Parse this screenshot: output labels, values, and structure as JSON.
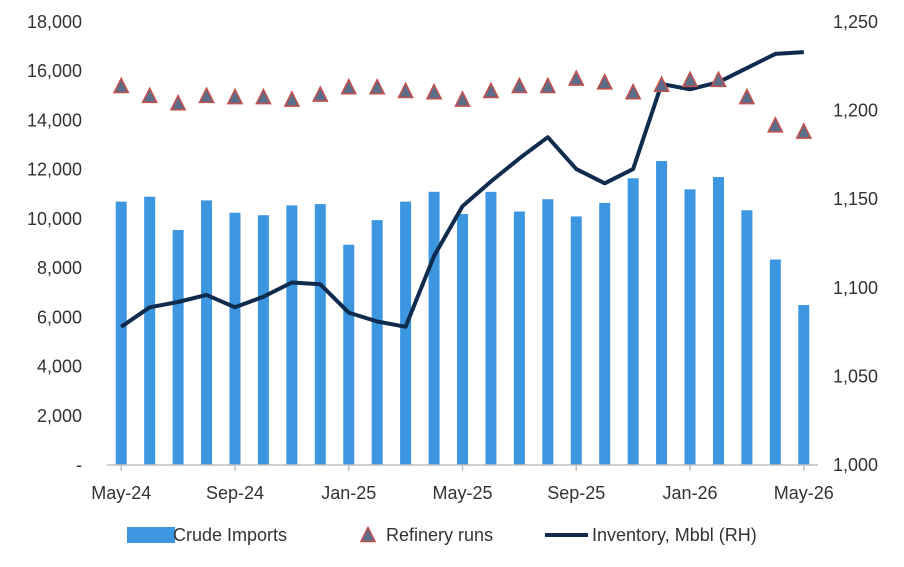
{
  "chart_data": {
    "type": "bar",
    "categories": [
      "May-24",
      "Jun-24",
      "Jul-24",
      "Aug-24",
      "Sep-24",
      "Oct-24",
      "Nov-24",
      "Dec-24",
      "Jan-25",
      "Feb-25",
      "Mar-25",
      "Apr-25",
      "May-25",
      "Jun-25",
      "Jul-25",
      "Aug-25",
      "Sep-25",
      "Oct-25",
      "Nov-25",
      "Dec-25",
      "Jan-26",
      "Feb-26",
      "Mar-26",
      "Apr-26",
      "May-26"
    ],
    "x_tick_labels": [
      "May-24",
      "Sep-24",
      "Jan-25",
      "May-25",
      "Sep-25",
      "Jan-26",
      "May-26"
    ],
    "x_tick_indices": [
      0,
      4,
      8,
      12,
      16,
      20,
      24
    ],
    "y_left": {
      "lim": [
        0,
        18000
      ],
      "ticks": [
        0,
        2000,
        4000,
        6000,
        8000,
        10000,
        12000,
        14000,
        16000,
        18000
      ],
      "tick_labels": [
        "-",
        "2,000",
        "4,000",
        "6,000",
        "8,000",
        "10,000",
        "12,000",
        "14,000",
        "16,000",
        "18,000"
      ]
    },
    "y_right": {
      "lim": [
        1000,
        1250
      ],
      "ticks": [
        1000,
        1050,
        1100,
        1150,
        1200,
        1250
      ],
      "tick_labels": [
        "1,000",
        "1,050",
        "1,100",
        "1,150",
        "1,200",
        "1,250"
      ]
    },
    "series": [
      {
        "name": "Crude Imports",
        "kind": "bar",
        "axis": "left",
        "color": "#3d96e0",
        "values": [
          10700,
          10900,
          9550,
          10750,
          10250,
          10150,
          10550,
          10600,
          8950,
          9950,
          10700,
          11100,
          10200,
          11100,
          10300,
          10800,
          10100,
          10650,
          11650,
          12350,
          11200,
          11700,
          10350,
          8350,
          6500
        ]
      },
      {
        "name": "Refinery runs",
        "kind": "marker",
        "axis": "left",
        "color": "#5a6e8c",
        "edge_color": "#c0504d",
        "values": [
          15400,
          15000,
          14700,
          15000,
          14950,
          14950,
          14850,
          15050,
          15350,
          15350,
          15200,
          15150,
          14850,
          15200,
          15400,
          15400,
          15700,
          15550,
          15150,
          15450,
          15650,
          15650,
          14950,
          13800,
          13550
        ]
      },
      {
        "name": "Inventory, Mbbl (RH)",
        "kind": "line",
        "axis": "right",
        "color": "#0f2b4d",
        "values": [
          1078,
          1089,
          1092,
          1096,
          1089,
          1095,
          1103,
          1102,
          1086,
          1081,
          1078,
          1118,
          1146,
          1160,
          1173,
          1185,
          1167,
          1159,
          1167,
          1215,
          1212,
          1216,
          1224,
          1232,
          1233
        ]
      }
    ],
    "legend_position": "bottom",
    "grid": false
  }
}
